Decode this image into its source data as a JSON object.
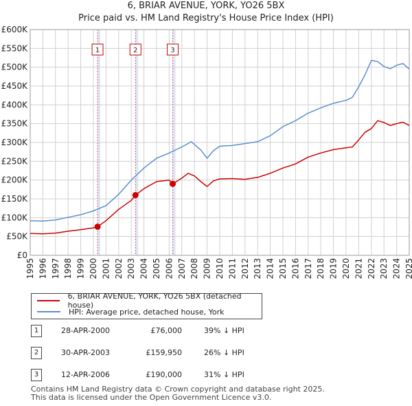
{
  "title_line1": "6, BRIAR AVENUE, YORK, YO26 5BX",
  "title_line2": "Price paid vs. HM Land Registry's House Price Index (HPI)",
  "chart_data": {
    "type": "line",
    "title": "6, BRIAR AVENUE, YORK, YO26 5BX — Price paid vs. HM Land Registry's House Price Index (HPI)",
    "xlim": [
      1995,
      2025
    ],
    "ylim": [
      0,
      600000
    ],
    "y_tick_values": [
      0,
      50000,
      100000,
      150000,
      200000,
      250000,
      300000,
      350000,
      400000,
      450000,
      500000,
      550000,
      600000
    ],
    "y_tick_labels": [
      "£0",
      "£50K",
      "£100K",
      "£150K",
      "£200K",
      "£250K",
      "£300K",
      "£350K",
      "£400K",
      "£450K",
      "£500K",
      "£550K",
      "£600K"
    ],
    "x_tick_values": [
      1995,
      1996,
      1997,
      1998,
      1999,
      2000,
      2001,
      2002,
      2003,
      2004,
      2005,
      2006,
      2007,
      2008,
      2009,
      2010,
      2011,
      2012,
      2013,
      2014,
      2015,
      2016,
      2017,
      2018,
      2019,
      2020,
      2021,
      2022,
      2023,
      2024,
      2025
    ],
    "x_tick_labels": [
      "1995",
      "1996",
      "1997",
      "1998",
      "1999",
      "2000",
      "2001",
      "2002",
      "2003",
      "2004",
      "2005",
      "2006",
      "2007",
      "2008",
      "2009",
      "2010",
      "2011",
      "2012",
      "2013",
      "2014",
      "2015",
      "2016",
      "2017",
      "2018",
      "2019",
      "2020",
      "2021",
      "2022",
      "2023",
      "2024",
      "2025"
    ],
    "series": [
      {
        "name": "6, BRIAR AVENUE, YORK, YO26 5BX (detached house)",
        "color": "#cc0000",
        "x": [
          1995,
          1996,
          1997,
          1998,
          1999,
          2000,
          2000.33,
          2001,
          2002,
          2003,
          2003.33,
          2004,
          2005,
          2006,
          2006.28,
          2007,
          2007.5,
          2008,
          2008.5,
          2009,
          2009.5,
          2010,
          2011,
          2012,
          2013,
          2014,
          2015,
          2016,
          2017,
          2018,
          2019,
          2020,
          2020.5,
          2021,
          2021.5,
          2022,
          2022.5,
          2023,
          2023.5,
          2024,
          2024.5,
          2025
        ],
        "values": [
          58000,
          57000,
          59000,
          64000,
          68000,
          73000,
          76000,
          92000,
          122000,
          146000,
          159950,
          177000,
          196000,
          200000,
          190000,
          205000,
          218000,
          211000,
          196000,
          183000,
          198000,
          203000,
          204000,
          202000,
          207000,
          218000,
          232000,
          243000,
          261000,
          272000,
          281000,
          286000,
          288000,
          307000,
          327000,
          337000,
          358000,
          353000,
          345000,
          350000,
          354000,
          345000
        ]
      },
      {
        "name": "HPI: Average price, detached house, York",
        "color": "#5a8fd0",
        "x": [
          1995,
          1996,
          1997,
          1998,
          1999,
          2000,
          2001,
          2002,
          2003,
          2004,
          2005,
          2006,
          2007,
          2007.75,
          2008.5,
          2009,
          2009.5,
          2010,
          2011,
          2012,
          2013,
          2014,
          2015,
          2016,
          2017,
          2018,
          2019,
          2020,
          2020.5,
          2021,
          2021.5,
          2022,
          2022.5,
          2023,
          2023.5,
          2024,
          2024.5,
          2025
        ],
        "values": [
          92000,
          91000,
          94000,
          101000,
          108000,
          118000,
          132000,
          162000,
          200000,
          232000,
          258000,
          272000,
          288000,
          302000,
          280000,
          258000,
          278000,
          290000,
          292000,
          297000,
          302000,
          318000,
          342000,
          358000,
          378000,
          392000,
          404000,
          412000,
          420000,
          448000,
          480000,
          518000,
          515000,
          502000,
          496000,
          505000,
          510000,
          495000
        ]
      }
    ],
    "sale_markers": [
      {
        "label": "1",
        "x": 2000.33,
        "value": 76000
      },
      {
        "label": "2",
        "x": 2003.33,
        "value": 159950
      },
      {
        "label": "3",
        "x": 2006.28,
        "value": 190000
      }
    ]
  },
  "legend": {
    "items": [
      {
        "label": "6, BRIAR AVENUE, YORK, YO26 5BX (detached house)",
        "color": "#cc0000"
      },
      {
        "label": "HPI: Average price, detached house, York",
        "color": "#5a8fd0"
      }
    ]
  },
  "sales": [
    {
      "num": "1",
      "date": "28-APR-2000",
      "price": "£76,000",
      "hpi": "39% ↓ HPI"
    },
    {
      "num": "2",
      "date": "30-APR-2003",
      "price": "£159,950",
      "hpi": "26% ↓ HPI"
    },
    {
      "num": "3",
      "date": "12-APR-2006",
      "price": "£190,000",
      "hpi": "31% ↓ HPI"
    }
  ],
  "footer": {
    "line1": "Contains HM Land Registry data © Crown copyright and database right 2025.",
    "line2": "This data is licensed under the Open Government Licence v3.0."
  }
}
